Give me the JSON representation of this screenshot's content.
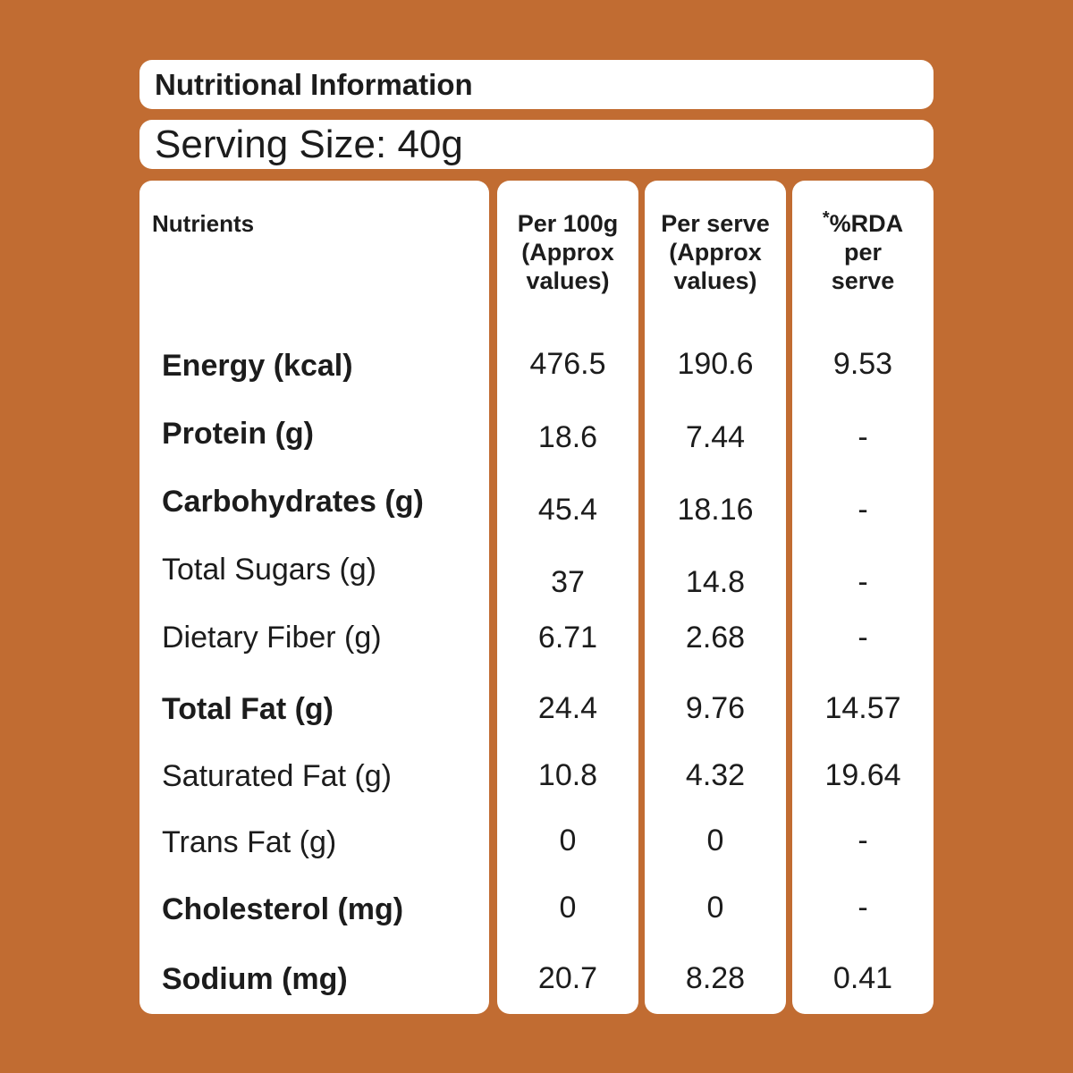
{
  "title": "Nutritional Information",
  "serving_size": "Serving Size: 40g",
  "headers": {
    "nutrients": "Nutrients",
    "per100": [
      "Per 100g",
      "(Approx",
      "values)"
    ],
    "perserve": [
      "Per serve",
      "(Approx",
      "values)"
    ],
    "rda_mark": "*",
    "rda": [
      "%RDA",
      "per",
      "serve"
    ]
  },
  "rows": [
    {
      "name": "Energy (kcal)",
      "bold": true,
      "per100": "476.5",
      "serve": "190.6",
      "rda": "9.53"
    },
    {
      "name": "Protein (g)",
      "bold": true,
      "per100": "18.6",
      "serve": "7.44",
      "rda": "-"
    },
    {
      "name": "Carbohydrates (g)",
      "bold": true,
      "per100": "45.4",
      "serve": "18.16",
      "rda": "-"
    },
    {
      "name": "Total Sugars (g)",
      "bold": false,
      "per100": "37",
      "serve": "14.8",
      "rda": "-"
    },
    {
      "name": "Dietary Fiber (g)",
      "bold": false,
      "per100": "6.71",
      "serve": "2.68",
      "rda": "-"
    },
    {
      "name": "Total Fat (g)",
      "bold": true,
      "per100": "24.4",
      "serve": "9.76",
      "rda": "14.57"
    },
    {
      "name": "Saturated Fat (g)",
      "bold": false,
      "per100": "10.8",
      "serve": "4.32",
      "rda": "19.64"
    },
    {
      "name": "Trans Fat (g)",
      "bold": false,
      "per100": "0",
      "serve": "0",
      "rda": "-"
    },
    {
      "name": "Cholesterol (mg)",
      "bold": true,
      "per100": "0",
      "serve": "0",
      "rda": "-"
    },
    {
      "name": "Sodium (mg)",
      "bold": true,
      "per100": "20.7",
      "serve": "8.28",
      "rda": "0.41"
    }
  ],
  "colors": {
    "background": "#c16c32",
    "panel": "#ffffff",
    "text": "#1c1c1c"
  }
}
